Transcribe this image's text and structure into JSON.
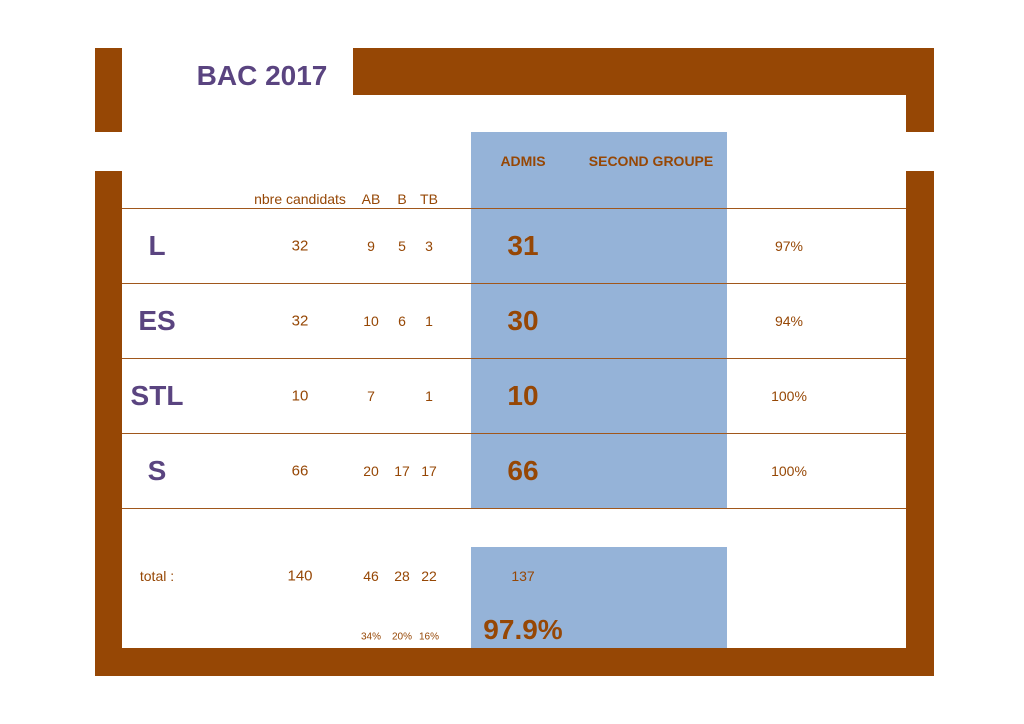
{
  "title": "BAC  2017",
  "headers": {
    "candidats": "nbre candidats",
    "ab": "AB",
    "b": "B",
    "tb": "TB",
    "admis": "ADMIS",
    "second": "SECOND GROUPE"
  },
  "rows": [
    {
      "serie": "L",
      "candidats": "32",
      "ab": "9",
      "b": "5",
      "tb": "3",
      "admis": "31",
      "pct": "97%"
    },
    {
      "serie": "ES",
      "candidats": "32",
      "ab": "10",
      "b": "6",
      "tb": "1",
      "admis": "30",
      "pct": "94%"
    },
    {
      "serie": "STL",
      "candidats": "10",
      "ab": "7",
      "b": "",
      "tb": "1",
      "admis": "10",
      "pct": "100%"
    },
    {
      "serie": "S",
      "candidats": "66",
      "ab": "20",
      "b": "17",
      "tb": "17",
      "admis": "66",
      "pct": "100%"
    }
  ],
  "total": {
    "label": "total :",
    "candidats": "140",
    "ab": "46",
    "b": "28",
    "tb": "22",
    "admis": "137",
    "ab_pct": "34%",
    "b_pct": "20%",
    "tb_pct": "16%",
    "admis_pct": "97.9%"
  },
  "colors": {
    "brown": "#964705",
    "blue": "#95b3d8",
    "purple": "#5a4480"
  }
}
